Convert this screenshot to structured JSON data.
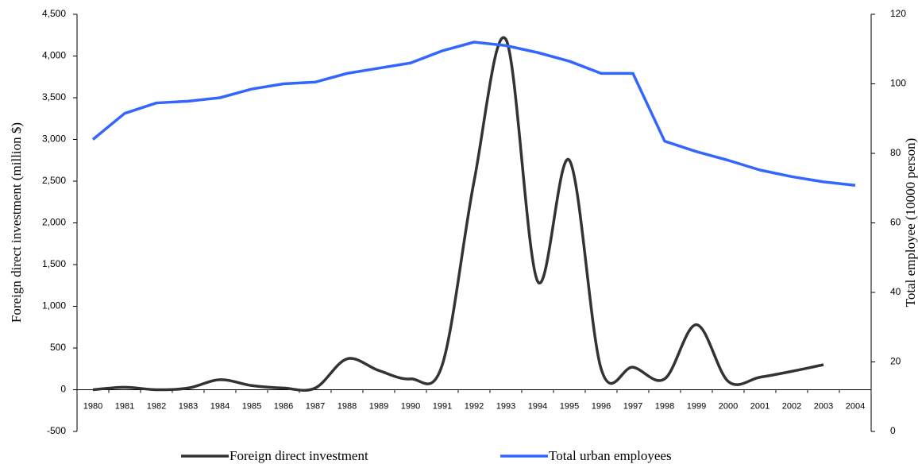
{
  "chart_data": {
    "type": "line",
    "categories": [
      "1980",
      "1981",
      "1982",
      "1983",
      "1984",
      "1985",
      "1986",
      "1987",
      "1988",
      "1989",
      "1990",
      "1991",
      "1992",
      "1993",
      "1994",
      "1995",
      "1996",
      "1997",
      "1998",
      "1999",
      "2000",
      "2001",
      "2002",
      "2003",
      "2004"
    ],
    "y_label": "Foreign direct investment (million $)",
    "y2_label": "Total employee (10000 person)",
    "ylim": [
      -500,
      4500
    ],
    "yticks": [
      -500,
      0,
      {
        "value": 500,
        "label": "500"
      },
      {
        "value": 1000,
        "label": "1,000"
      },
      {
        "value": 1500,
        "label": "1,500"
      },
      {
        "value": 2000,
        "label": "2,000"
      },
      {
        "value": 2500,
        "label": "2,500"
      },
      {
        "value": 3000,
        "label": "3,000"
      },
      {
        "value": 3500,
        "label": "3,500"
      },
      {
        "value": 4000,
        "label": "4,000"
      },
      {
        "value": 4500,
        "label": "4,500"
      }
    ],
    "y2lim": [
      0,
      120
    ],
    "y2ticks": [
      0,
      20,
      40,
      60,
      80,
      100,
      120
    ],
    "legend": "bottom",
    "series": [
      {
        "name": "Foreign direct investment",
        "color": "#333333",
        "smooth": true,
        "values": [
          0,
          30,
          0,
          20,
          120,
          50,
          20,
          20,
          370,
          230,
          130,
          300,
          2500,
          4200,
          1300,
          2750,
          250,
          270,
          130,
          780,
          100,
          150,
          220,
          300,
          null
        ]
      },
      {
        "name": "Total urban employees",
        "color": "#3366ff",
        "axis": "y2",
        "smooth": false,
        "values": [
          84,
          91.5,
          94.5,
          95,
          96,
          98.5,
          100,
          100.5,
          103,
          104.5,
          106,
          109.5,
          112,
          111,
          109,
          106.5,
          103,
          103,
          83.5,
          80.5,
          78,
          75.2,
          73.3,
          71.8,
          70.8
        ]
      }
    ]
  }
}
